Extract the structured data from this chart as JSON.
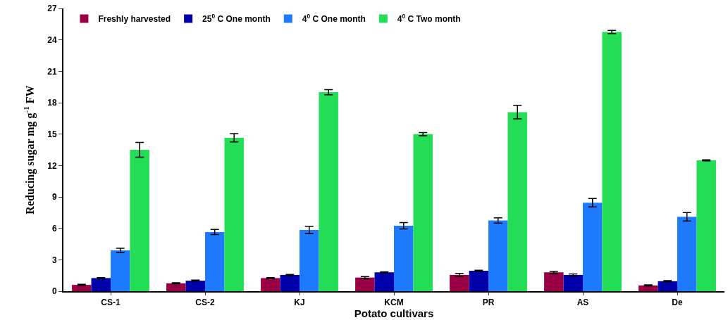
{
  "chart_data": {
    "type": "bar",
    "xlabel": "Potato cultivars",
    "ylabel": "Reducing sugar mg g$^{-1}$ FW",
    "categories": [
      "CS-1",
      "CS-2",
      "KJ",
      "KCM",
      "PR",
      "AS",
      "De"
    ],
    "series": [
      {
        "name": "Freshly harvested",
        "color": "#990044",
        "values": [
          0.6,
          0.75,
          1.25,
          1.3,
          1.55,
          1.8,
          0.55
        ],
        "errors": [
          0.05,
          0.05,
          0.05,
          0.1,
          0.15,
          0.1,
          0.05
        ]
      },
      {
        "name": "25$^{0}$ C One month",
        "color": "#0000aa",
        "values": [
          1.25,
          1.0,
          1.55,
          1.8,
          1.95,
          1.55,
          0.95
        ],
        "errors": [
          0.05,
          0.05,
          0.05,
          0.05,
          0.05,
          0.1,
          0.05
        ]
      },
      {
        "name": "4$^{0}$ C One month",
        "color": "#1e7bff",
        "values": [
          3.9,
          5.65,
          5.85,
          6.25,
          6.75,
          8.45,
          7.1
        ],
        "errors": [
          0.2,
          0.25,
          0.35,
          0.3,
          0.25,
          0.4,
          0.4
        ]
      },
      {
        "name": "4$^{0}$ C Two month",
        "color": "#22dd55",
        "values": [
          13.5,
          14.65,
          19.0,
          15.0,
          17.1,
          24.75,
          12.5
        ],
        "errors": [
          0.7,
          0.4,
          0.25,
          0.15,
          0.65,
          0.15,
          0.05
        ]
      }
    ],
    "ylim": [
      0,
      27
    ],
    "yticks": [
      0,
      3,
      6,
      9,
      12,
      15,
      18,
      21,
      24,
      27
    ],
    "legend": "top"
  }
}
